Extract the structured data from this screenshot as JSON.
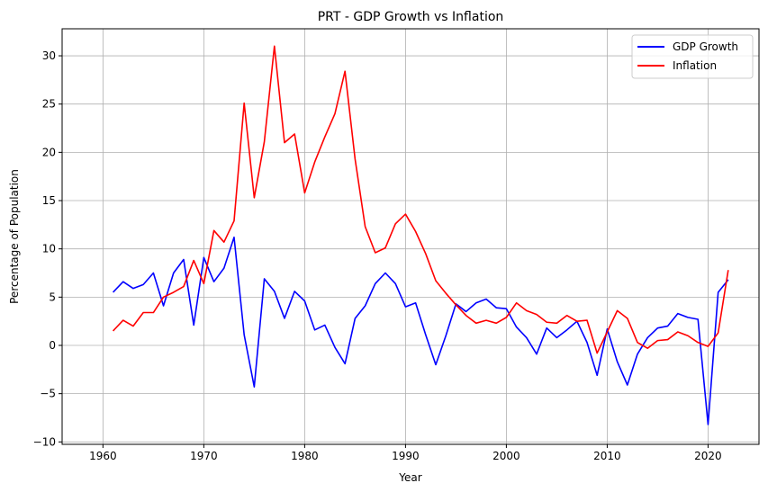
{
  "chart_data": {
    "type": "line",
    "title": "PRT - GDP Growth vs Inflation",
    "xlabel": "Year",
    "ylabel": "Percentage of Population",
    "xlim": [
      1955.95,
      2025.05
    ],
    "ylim": [
      -10.25,
      32.8
    ],
    "xticks": [
      1960,
      1970,
      1980,
      1990,
      2000,
      2010,
      2020
    ],
    "yticks": [
      -10,
      -5,
      0,
      5,
      10,
      15,
      20,
      25,
      30
    ],
    "grid": true,
    "legend_position": "top-right",
    "x": [
      1961,
      1962,
      1963,
      1964,
      1965,
      1966,
      1967,
      1968,
      1969,
      1970,
      1971,
      1972,
      1973,
      1974,
      1975,
      1976,
      1977,
      1978,
      1979,
      1980,
      1981,
      1982,
      1983,
      1984,
      1985,
      1986,
      1987,
      1988,
      1989,
      1990,
      1991,
      1992,
      1993,
      1994,
      1995,
      1996,
      1997,
      1998,
      1999,
      2000,
      2001,
      2002,
      2003,
      2004,
      2005,
      2006,
      2007,
      2008,
      2009,
      2010,
      2011,
      2012,
      2013,
      2014,
      2015,
      2016,
      2017,
      2018,
      2019,
      2020,
      2021,
      2022
    ],
    "series": [
      {
        "name": "GDP Growth",
        "color": "#0000ff",
        "values": [
          5.5,
          6.6,
          5.9,
          6.3,
          7.5,
          4.1,
          7.5,
          8.9,
          2.1,
          9.1,
          6.6,
          8.0,
          11.2,
          1.1,
          -4.3,
          6.9,
          5.6,
          2.8,
          5.6,
          4.6,
          1.6,
          2.1,
          -0.2,
          -1.9,
          2.8,
          4.1,
          6.4,
          7.5,
          6.4,
          4.0,
          4.4,
          1.1,
          -2.0,
          1.0,
          4.3,
          3.5,
          4.4,
          4.8,
          3.9,
          3.8,
          1.9,
          0.8,
          -0.9,
          1.8,
          0.8,
          1.6,
          2.5,
          0.3,
          -3.1,
          1.7,
          -1.7,
          -4.1,
          -0.9,
          0.8,
          1.8,
          2.0,
          3.3,
          2.9,
          2.7,
          -8.2,
          5.5,
          6.8
        ]
      },
      {
        "name": "Inflation",
        "color": "#ff0000",
        "values": [
          1.5,
          2.6,
          2.0,
          3.4,
          3.4,
          5.0,
          5.5,
          6.1,
          8.8,
          6.4,
          11.9,
          10.7,
          12.9,
          25.1,
          15.3,
          21.1,
          31.0,
          21.0,
          21.9,
          15.8,
          19.0,
          21.6,
          24.0,
          28.4,
          19.3,
          12.3,
          9.6,
          10.1,
          12.6,
          13.6,
          11.8,
          9.5,
          6.7,
          5.4,
          4.2,
          3.1,
          2.3,
          2.6,
          2.3,
          2.9,
          4.4,
          3.6,
          3.2,
          2.4,
          2.3,
          3.1,
          2.5,
          2.6,
          -0.8,
          1.4,
          3.6,
          2.8,
          0.3,
          -0.3,
          0.5,
          0.6,
          1.4,
          1.0,
          0.3,
          -0.1,
          1.3,
          7.8
        ]
      }
    ]
  }
}
